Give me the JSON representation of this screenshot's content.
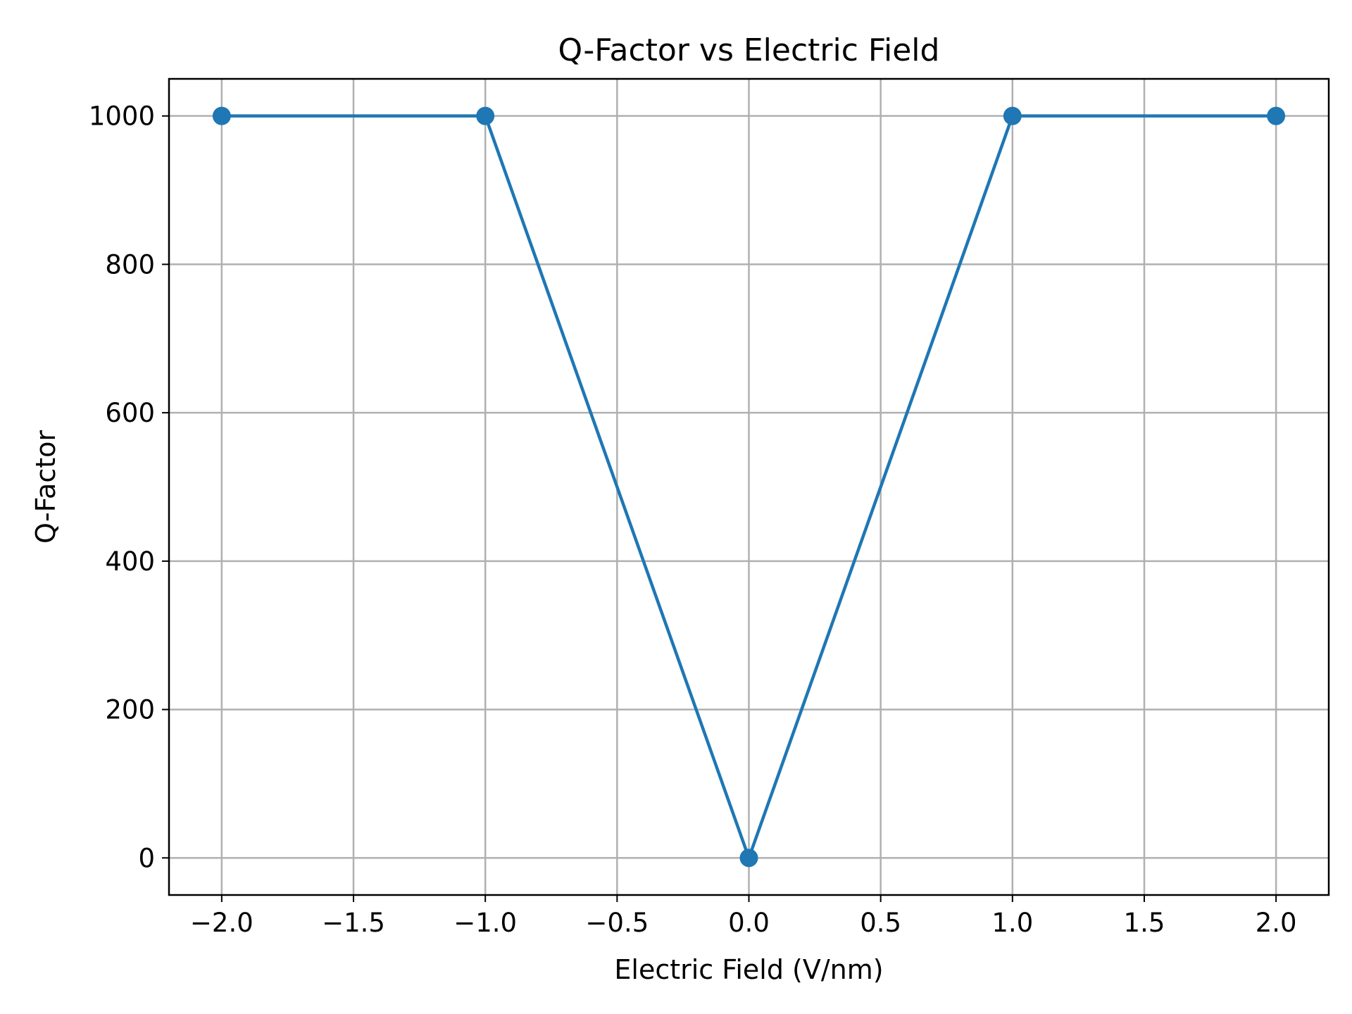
{
  "chart_data": {
    "type": "line",
    "title": "Q-Factor vs Electric Field",
    "xlabel": "Electric Field (V/nm)",
    "ylabel": "Q-Factor",
    "xlim": [
      -2.2,
      2.2
    ],
    "ylim": [
      -50,
      1050
    ],
    "xticks": [
      -2.0,
      -1.5,
      -1.0,
      -0.5,
      0.0,
      0.5,
      1.0,
      1.5,
      2.0
    ],
    "xtick_labels": [
      "−2.0",
      "−1.5",
      "−1.0",
      "−0.5",
      "0.0",
      "0.5",
      "1.0",
      "1.5",
      "2.0"
    ],
    "yticks": [
      0,
      200,
      400,
      600,
      800,
      1000
    ],
    "ytick_labels": [
      "0",
      "200",
      "400",
      "600",
      "800",
      "1000"
    ],
    "grid": true,
    "series": [
      {
        "x": [
          -2,
          -1,
          0,
          1,
          2
        ],
        "y": [
          1000,
          1000,
          0,
          1000,
          1000
        ],
        "color": "#1f77b4",
        "marker": "circle"
      }
    ]
  }
}
